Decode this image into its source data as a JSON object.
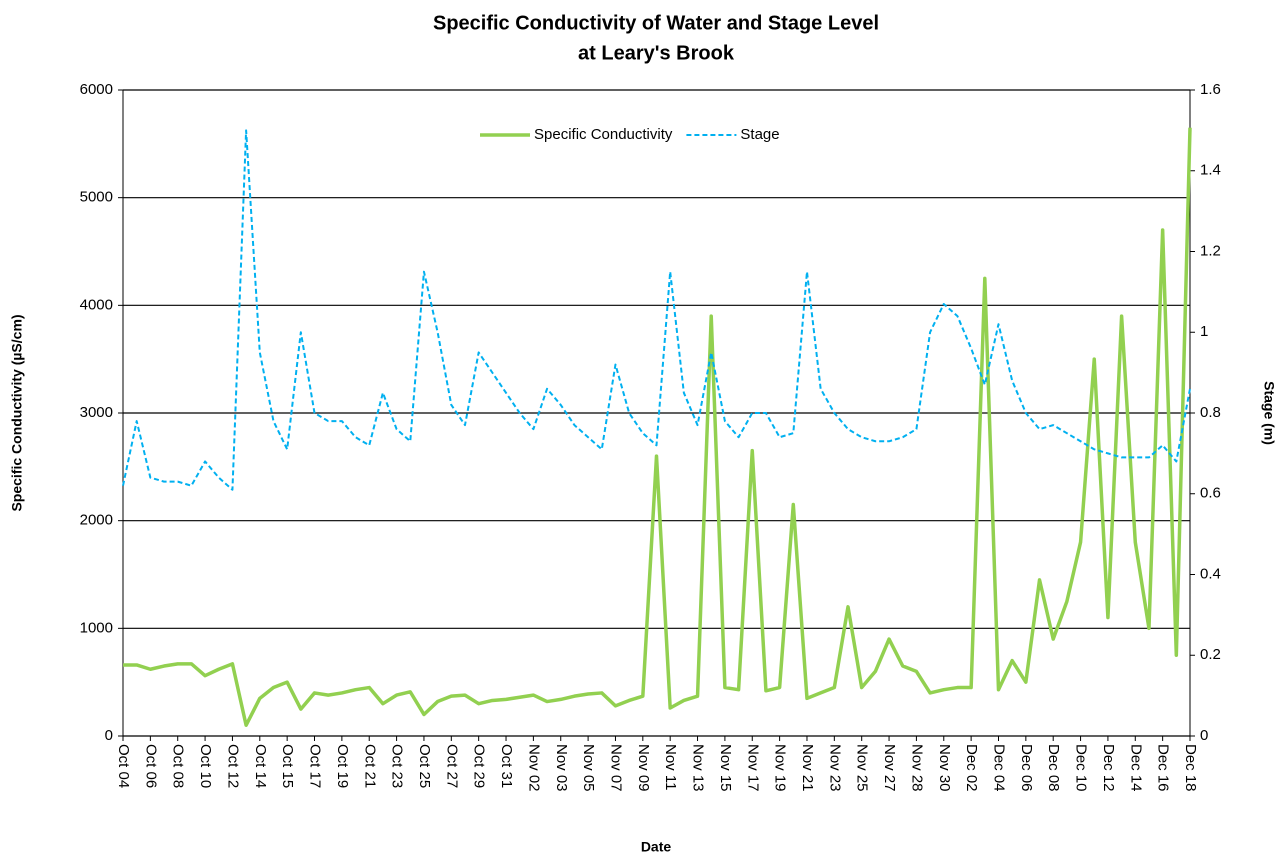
{
  "chart_data": {
    "type": "line",
    "title": [
      "Specific Conductivity of Water and Stage Level",
      "at Leary's Brook"
    ],
    "x_label": "Date",
    "y_label": "Specific Conductivity (µS/cm)",
    "y2_label": "Stage (m)",
    "categories": [
      "Oct 04",
      null,
      "Oct 06",
      null,
      "Oct 08",
      null,
      "Oct 10",
      null,
      "Oct 12",
      null,
      "Oct 14",
      null,
      "Oct 15",
      null,
      "Oct 17",
      null,
      "Oct 19",
      null,
      "Oct 21",
      null,
      "Oct 23",
      null,
      "Oct 25",
      null,
      "Oct 27",
      null,
      "Oct 29",
      null,
      "Oct 31",
      null,
      "Nov 02",
      null,
      "Nov 03",
      null,
      "Nov 05",
      null,
      "Nov 07",
      null,
      "Nov 09",
      null,
      "Nov 11",
      null,
      "Nov 13",
      null,
      "Nov 15",
      null,
      "Nov 17",
      null,
      "Nov 19",
      null,
      "Nov 21",
      null,
      "Nov 23",
      null,
      "Nov 25",
      null,
      "Nov 27",
      null,
      "Nov 28",
      null,
      "Nov 30",
      null,
      "Dec 02",
      null,
      "Dec 04",
      null,
      "Dec 06",
      null,
      "Dec 08",
      null,
      "Dec 10",
      null,
      "Dec 12",
      null,
      "Dec 14",
      null,
      "Dec 16",
      null,
      "Dec 18"
    ],
    "series": [
      {
        "name": "Specific Conductivity",
        "color": "#92d050",
        "dash": false,
        "values": [
          660,
          660,
          620,
          650,
          670,
          670,
          560,
          620,
          670,
          100,
          350,
          450,
          500,
          250,
          400,
          380,
          400,
          430,
          450,
          300,
          380,
          410,
          200,
          320,
          370,
          380,
          300,
          330,
          340,
          360,
          380,
          320,
          340,
          370,
          390,
          400,
          280,
          330,
          370,
          2600,
          260,
          330,
          370,
          3900,
          450,
          430,
          2650,
          420,
          450,
          2150,
          350,
          400,
          450,
          1200,
          450,
          600,
          900,
          650,
          600,
          400,
          430,
          450,
          450,
          4250,
          430,
          700,
          500,
          1450,
          900,
          1250,
          1800,
          3500,
          1100,
          3900,
          1800,
          1000,
          4700,
          750,
          5650
        ]
      },
      {
        "name": "Stage",
        "color": "#00b0f0",
        "dash": true,
        "axis": "y2",
        "values": [
          0.62,
          0.78,
          0.64,
          0.63,
          0.63,
          0.62,
          0.68,
          0.64,
          0.61,
          1.5,
          0.95,
          0.78,
          0.71,
          1.0,
          0.8,
          0.78,
          0.78,
          0.74,
          0.72,
          0.85,
          0.76,
          0.73,
          1.15,
          1.0,
          0.82,
          0.77,
          0.95,
          0.9,
          0.85,
          0.8,
          0.76,
          0.86,
          0.82,
          0.77,
          0.74,
          0.71,
          0.92,
          0.8,
          0.75,
          0.72,
          1.15,
          0.85,
          0.77,
          0.95,
          0.78,
          0.74,
          0.8,
          0.8,
          0.74,
          0.75,
          1.15,
          0.86,
          0.8,
          0.76,
          0.74,
          0.73,
          0.73,
          0.74,
          0.76,
          1.0,
          1.07,
          1.04,
          0.96,
          0.87,
          1.02,
          0.88,
          0.8,
          0.76,
          0.77,
          0.75,
          0.73,
          0.71,
          0.7,
          0.69,
          0.69,
          0.69,
          0.72,
          0.68,
          0.86
        ]
      }
    ],
    "ylim": [
      0,
      6000
    ],
    "yticks": [
      0,
      1000,
      2000,
      3000,
      4000,
      5000,
      6000
    ],
    "y2lim": [
      0,
      1.6
    ],
    "y2ticks": [
      0,
      0.2,
      0.4,
      0.6,
      0.8,
      1,
      1.2,
      1.4,
      1.6
    ],
    "grid": true,
    "legend": "top"
  }
}
